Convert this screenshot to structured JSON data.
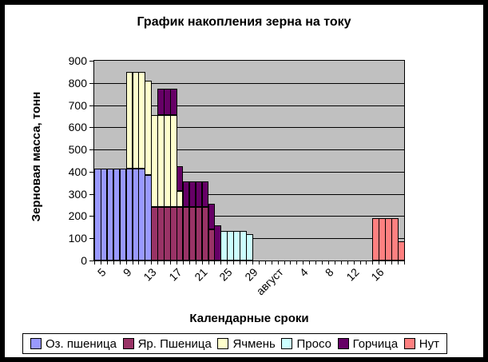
{
  "window": {
    "background": "#FFFFFF",
    "frame_border_color": "#000000"
  },
  "chart_data": {
    "type": "bar",
    "stacked": true,
    "title": "График накопления зерна на току",
    "xlabel": "Календарные сроки",
    "ylabel": "Зерновая масса, тонн",
    "grid": true,
    "legend_position": "bottom",
    "plot_bg_color": "#C0C0C0",
    "gridline_color": "#000000",
    "y_axis": {
      "min": 0,
      "max": 900,
      "step": 100,
      "tick_labels": [
        "0",
        "100",
        "200",
        "300",
        "400",
        "500",
        "600",
        "700",
        "800",
        "900"
      ]
    },
    "x_axis": {
      "n_categories": 49,
      "label_every": 4,
      "tick_labels": [
        "5",
        "9",
        "13",
        "17",
        "21",
        "25",
        "29",
        "август",
        "4",
        "8",
        "12",
        "16"
      ]
    },
    "series": [
      {
        "name": "Оз. пшеница",
        "color": "#9999FF",
        "values": [
          415,
          415,
          415,
          415,
          415,
          415,
          415,
          415,
          385,
          0,
          0,
          0,
          0,
          0,
          0,
          0,
          0,
          0,
          0,
          0,
          0,
          0,
          0,
          0,
          0,
          0,
          0,
          0,
          0,
          0,
          0,
          0,
          0,
          0,
          0,
          0,
          0,
          0,
          0,
          0,
          0,
          0,
          0,
          0,
          0,
          0,
          0,
          0,
          0
        ]
      },
      {
        "name": "Яр. Пшеница",
        "color": "#993366",
        "values": [
          0,
          0,
          0,
          0,
          0,
          0,
          0,
          0,
          0,
          240,
          240,
          240,
          240,
          240,
          240,
          240,
          240,
          240,
          140,
          0,
          0,
          0,
          0,
          0,
          0,
          0,
          0,
          0,
          0,
          0,
          0,
          0,
          0,
          0,
          0,
          0,
          0,
          0,
          0,
          0,
          0,
          0,
          0,
          0,
          0,
          0,
          0,
          0,
          0
        ]
      },
      {
        "name": "Ячмень",
        "color": "#FFFFCC",
        "values": [
          0,
          0,
          0,
          0,
          0,
          435,
          435,
          435,
          425,
          415,
          415,
          415,
          415,
          75,
          0,
          0,
          0,
          0,
          0,
          0,
          0,
          0,
          0,
          0,
          0,
          0,
          0,
          0,
          0,
          0,
          0,
          0,
          0,
          0,
          0,
          0,
          0,
          0,
          0,
          0,
          0,
          0,
          0,
          0,
          0,
          0,
          0,
          0,
          0
        ]
      },
      {
        "name": "Просо",
        "color": "#CCFFFF",
        "values": [
          0,
          0,
          0,
          0,
          0,
          0,
          0,
          0,
          0,
          0,
          0,
          0,
          0,
          0,
          0,
          0,
          0,
          0,
          0,
          0,
          135,
          135,
          135,
          135,
          120,
          0,
          0,
          0,
          0,
          0,
          0,
          0,
          0,
          0,
          0,
          0,
          0,
          0,
          0,
          0,
          0,
          0,
          0,
          0,
          0,
          0,
          0,
          0,
          0
        ]
      },
      {
        "name": "Горчица",
        "color": "#660066",
        "values": [
          0,
          0,
          0,
          0,
          0,
          0,
          0,
          0,
          0,
          0,
          120,
          120,
          120,
          110,
          115,
          115,
          115,
          115,
          115,
          160,
          0,
          0,
          0,
          0,
          0,
          0,
          0,
          0,
          0,
          0,
          0,
          0,
          0,
          0,
          0,
          0,
          0,
          0,
          0,
          0,
          0,
          0,
          0,
          0,
          0,
          0,
          0,
          0,
          0
        ]
      },
      {
        "name": "Нут",
        "color": "#FF8080",
        "values": [
          0,
          0,
          0,
          0,
          0,
          0,
          0,
          0,
          0,
          0,
          0,
          0,
          0,
          0,
          0,
          0,
          0,
          0,
          0,
          0,
          0,
          0,
          0,
          0,
          0,
          0,
          0,
          0,
          0,
          0,
          0,
          0,
          0,
          0,
          0,
          0,
          0,
          0,
          0,
          0,
          0,
          0,
          0,
          0,
          190,
          190,
          190,
          190,
          85
        ]
      }
    ]
  }
}
